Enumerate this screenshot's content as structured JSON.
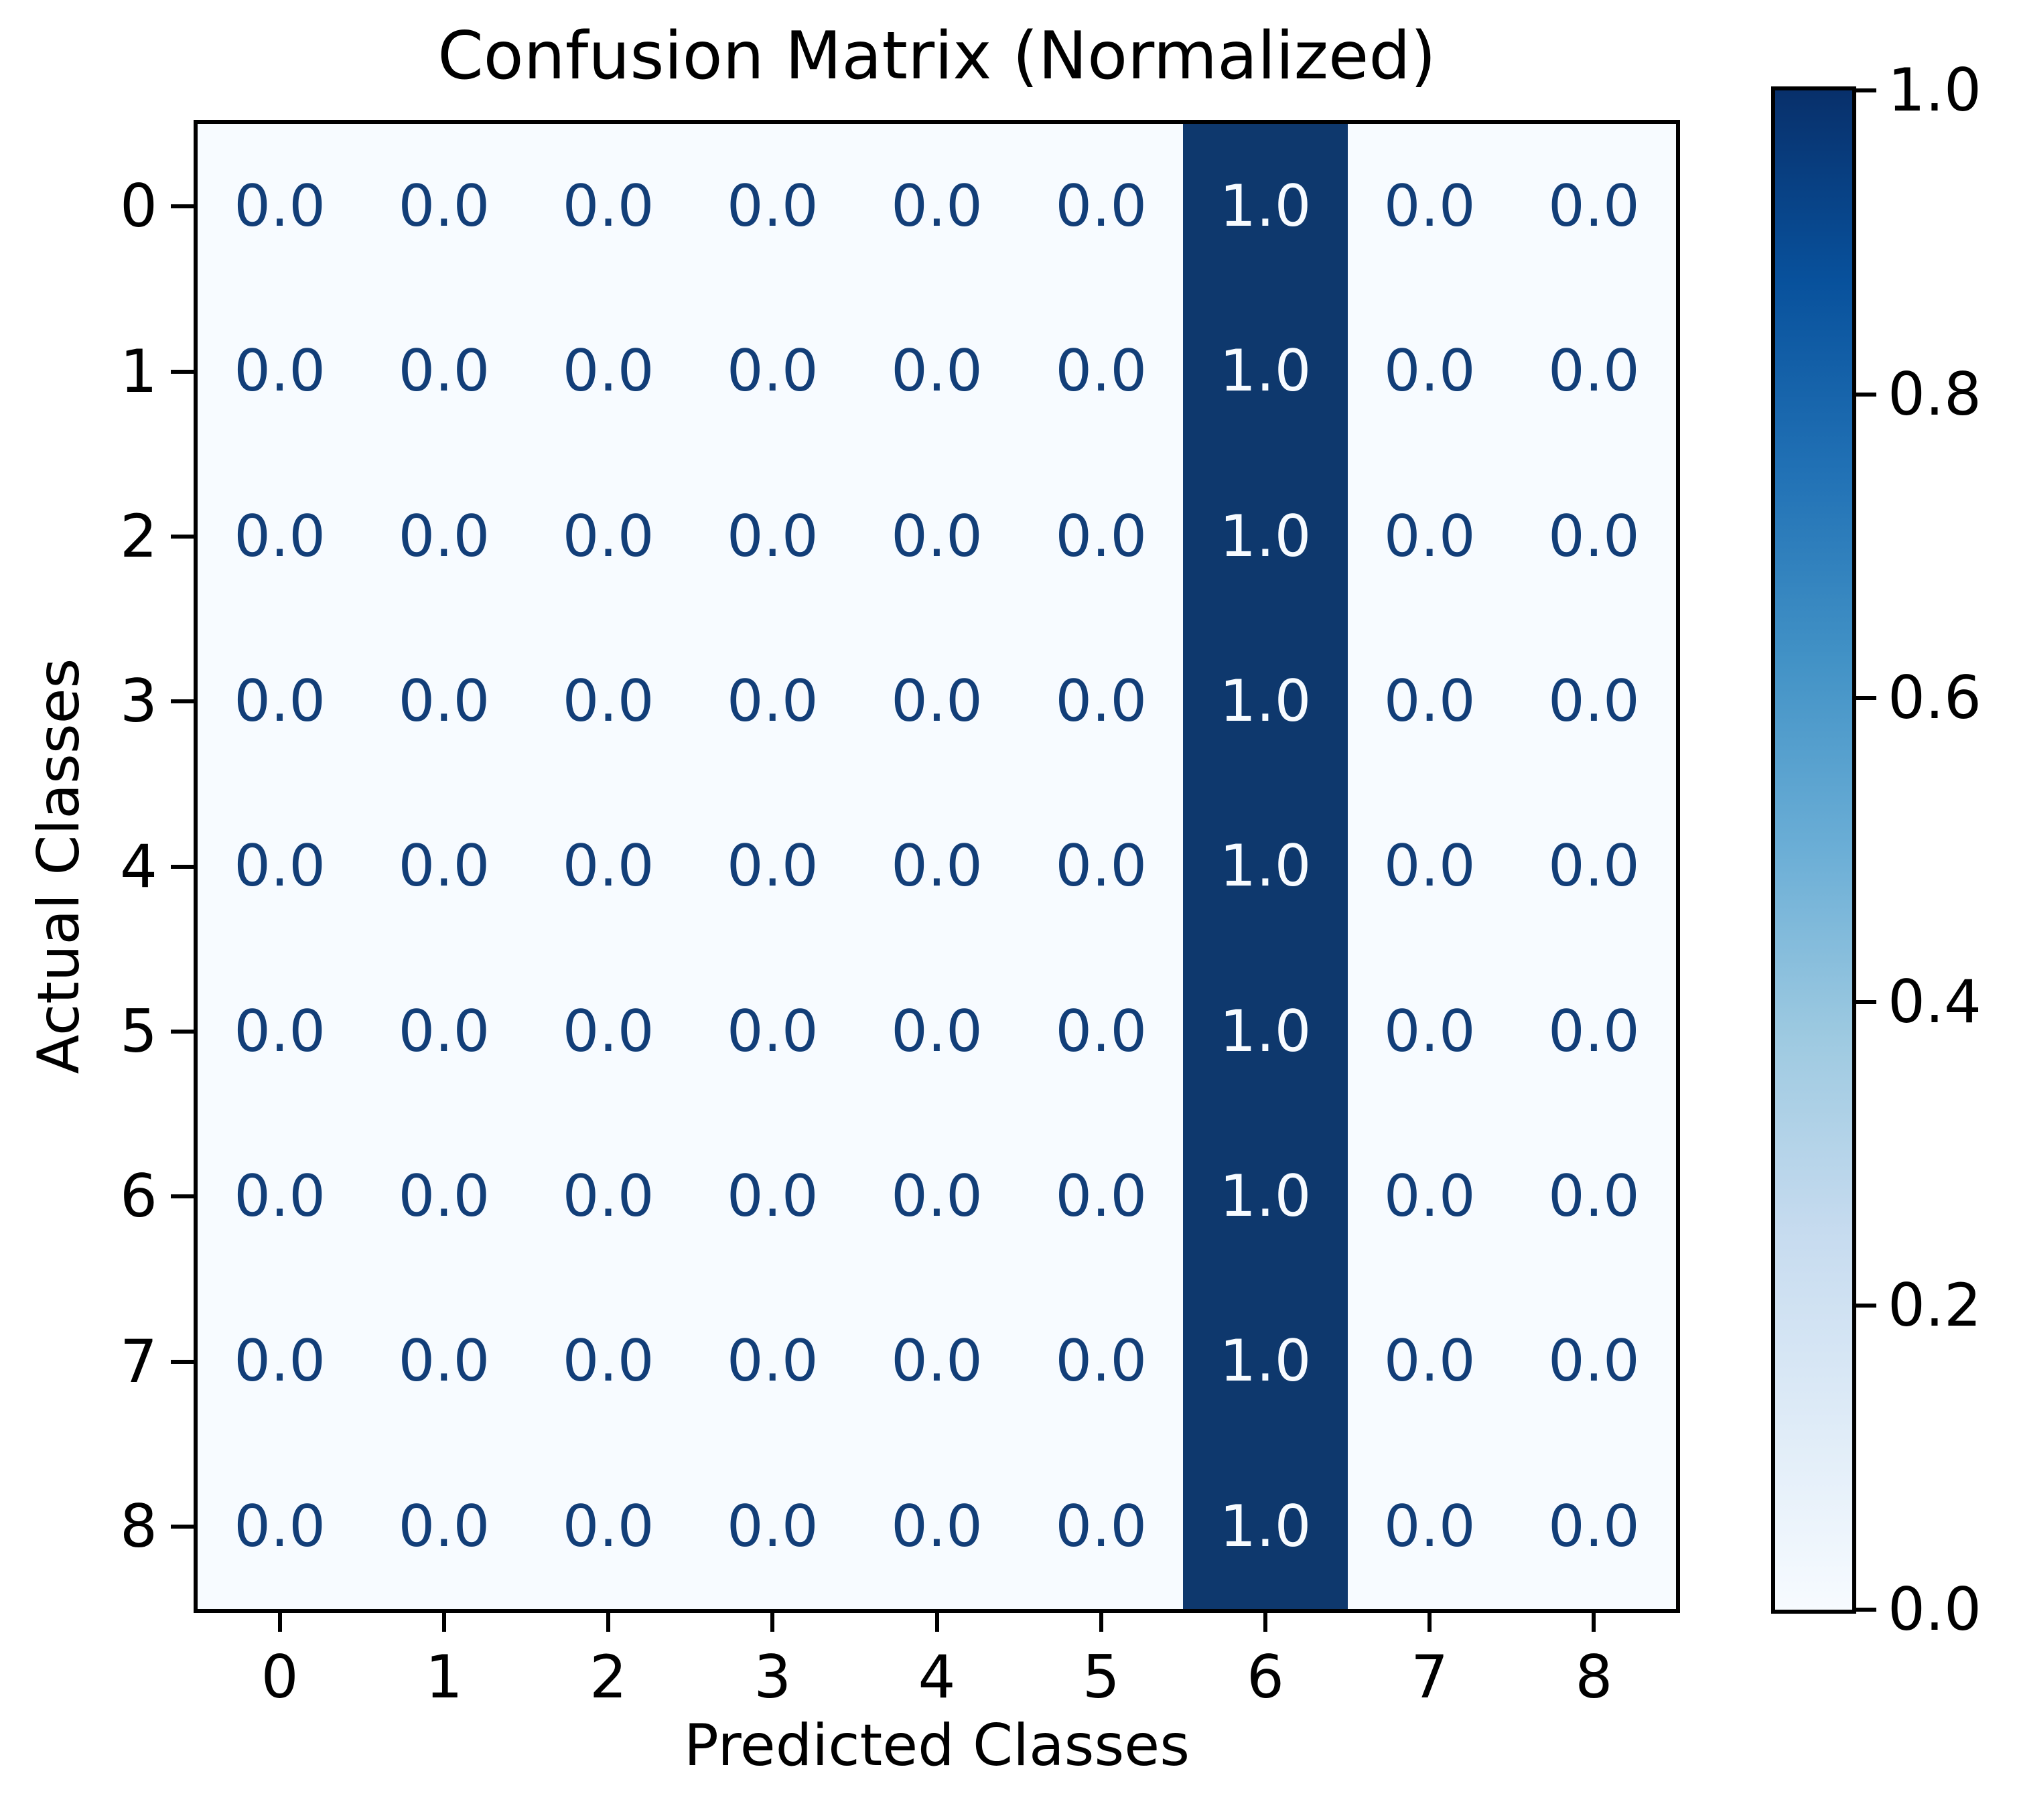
{
  "figure": {
    "background": "#ffffff"
  },
  "chart_data": {
    "type": "heatmap",
    "title": "Confusion Matrix (Normalized)",
    "xlabel": "Predicted Classes",
    "ylabel": "Actual Classes",
    "x_tick_labels": [
      "0",
      "1",
      "2",
      "3",
      "4",
      "5",
      "6",
      "7",
      "8"
    ],
    "y_tick_labels": [
      "0",
      "1",
      "2",
      "3",
      "4",
      "5",
      "6",
      "7",
      "8"
    ],
    "matrix": [
      [
        0.0,
        0.0,
        0.0,
        0.0,
        0.0,
        0.0,
        1.0,
        0.0,
        0.0
      ],
      [
        0.0,
        0.0,
        0.0,
        0.0,
        0.0,
        0.0,
        1.0,
        0.0,
        0.0
      ],
      [
        0.0,
        0.0,
        0.0,
        0.0,
        0.0,
        0.0,
        1.0,
        0.0,
        0.0
      ],
      [
        0.0,
        0.0,
        0.0,
        0.0,
        0.0,
        0.0,
        1.0,
        0.0,
        0.0
      ],
      [
        0.0,
        0.0,
        0.0,
        0.0,
        0.0,
        0.0,
        1.0,
        0.0,
        0.0
      ],
      [
        0.0,
        0.0,
        0.0,
        0.0,
        0.0,
        0.0,
        1.0,
        0.0,
        0.0
      ],
      [
        0.0,
        0.0,
        0.0,
        0.0,
        0.0,
        0.0,
        1.0,
        0.0,
        0.0
      ],
      [
        0.0,
        0.0,
        0.0,
        0.0,
        0.0,
        0.0,
        1.0,
        0.0,
        0.0
      ],
      [
        0.0,
        0.0,
        0.0,
        0.0,
        0.0,
        0.0,
        1.0,
        0.0,
        0.0
      ]
    ],
    "cell_labels": [
      [
        "0.0",
        "0.0",
        "0.0",
        "0.0",
        "0.0",
        "0.0",
        "1.0",
        "0.0",
        "0.0"
      ],
      [
        "0.0",
        "0.0",
        "0.0",
        "0.0",
        "0.0",
        "0.0",
        "1.0",
        "0.0",
        "0.0"
      ],
      [
        "0.0",
        "0.0",
        "0.0",
        "0.0",
        "0.0",
        "0.0",
        "1.0",
        "0.0",
        "0.0"
      ],
      [
        "0.0",
        "0.0",
        "0.0",
        "0.0",
        "0.0",
        "0.0",
        "1.0",
        "0.0",
        "0.0"
      ],
      [
        "0.0",
        "0.0",
        "0.0",
        "0.0",
        "0.0",
        "0.0",
        "1.0",
        "0.0",
        "0.0"
      ],
      [
        "0.0",
        "0.0",
        "0.0",
        "0.0",
        "0.0",
        "0.0",
        "1.0",
        "0.0",
        "0.0"
      ],
      [
        "0.0",
        "0.0",
        "0.0",
        "0.0",
        "0.0",
        "0.0",
        "1.0",
        "0.0",
        "0.0"
      ],
      [
        "0.0",
        "0.0",
        "0.0",
        "0.0",
        "0.0",
        "0.0",
        "1.0",
        "0.0",
        "0.0"
      ],
      [
        "0.0",
        "0.0",
        "0.0",
        "0.0",
        "0.0",
        "0.0",
        "1.0",
        "0.0",
        "0.0"
      ]
    ],
    "vmin": 0.0,
    "vmax": 1.0,
    "colormap": "Blues",
    "colorbar_tick_labels": [
      "1.0",
      "0.8",
      "0.6",
      "0.4",
      "0.2",
      "0.0"
    ],
    "colorbar_tick_values": [
      1.0,
      0.8,
      0.6,
      0.4,
      0.2,
      0.0
    ],
    "colorbar_position": "right",
    "grid": false
  },
  "colors": {
    "cell_low": "#f7fbff",
    "cell_high": "#0e386d",
    "annotation_on_low": "#123e78",
    "annotation_on_high": "#f7fbff",
    "axis": "#000000",
    "colorbar_gradient_bottom_to_top": [
      "#f7fbff",
      "#deebf7",
      "#c6dbef",
      "#9ecae1",
      "#6baed6",
      "#4292c6",
      "#2171b5",
      "#08519c",
      "#08306b"
    ]
  }
}
